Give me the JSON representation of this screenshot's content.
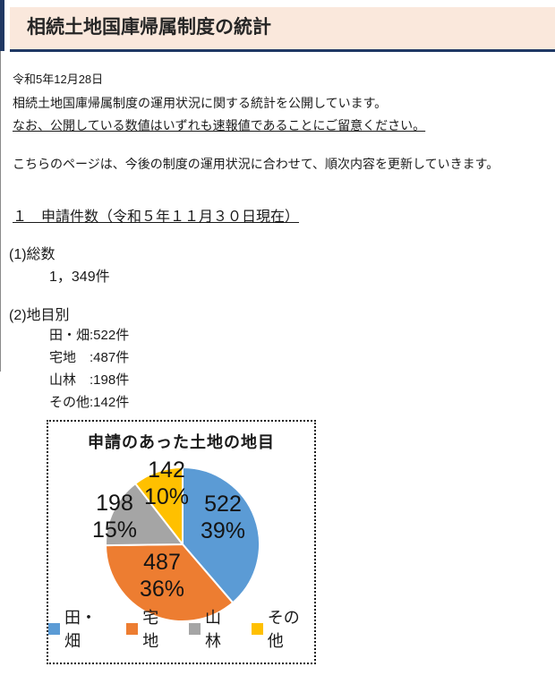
{
  "header": {
    "title": "相続土地国庫帰属制度の統計"
  },
  "meta": {
    "date": "令和5年12月28日"
  },
  "intro": {
    "line1": "相続土地国庫帰属制度の運用状況に関する統計を公開しています。",
    "line2_underlined": "なお、公開している数値はいずれも速報値であることにご留意ください。",
    "note": "こちらのページは、今後の制度の運用状況に合わせて、順次内容を更新していきます。"
  },
  "section1": {
    "heading": "１　申請件数（令和５年１１月３０日現在）",
    "total_label": "(1)総数",
    "total_value": "1，349件",
    "by_type_label": "(2)地目別",
    "by_type_items": [
      "田・畑:522件",
      "宅地　:487件",
      "山林　:198件",
      "その他:142件"
    ]
  },
  "chart_data": {
    "type": "pie",
    "title": "申請のあった土地の地目",
    "categories": [
      "田・畑",
      "宅地",
      "山林",
      "その他"
    ],
    "values": [
      522,
      487,
      198,
      142
    ],
    "percent_labels": [
      "39%",
      "36%",
      "15%",
      "10%"
    ],
    "colors": [
      "#5B9BD5",
      "#ED7D31",
      "#A5A5A5",
      "#FFC000"
    ],
    "total": 1349,
    "start_angle": "top",
    "direction": "clockwise",
    "slice_border_color": "#FFFFFF",
    "legend_position": "bottom"
  },
  "theme": {
    "header_bg": "#FAE8DC",
    "accent_navy": "#1F3864",
    "text_color": "#1a1a1a"
  }
}
